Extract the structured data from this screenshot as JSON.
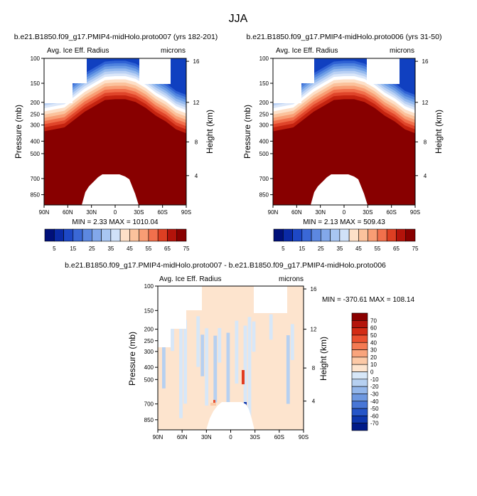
{
  "page": {
    "title": "JJA"
  },
  "colors": {
    "palette_pos": [
      "#fee6d2",
      "#fdd0ae",
      "#fcb08a",
      "#f98963",
      "#f3603f",
      "#e23c20",
      "#c72212",
      "#a8100a",
      "#880000"
    ],
    "palette_neg": [
      "#dceaf9",
      "#c2d8f3",
      "#a4c1ec",
      "#82a6e4",
      "#5c87da",
      "#3a66d0",
      "#1d47c2",
      "#0b2ba2",
      "#001580"
    ],
    "missing": "#ffffff",
    "diff_pos": [
      "#fde4ce",
      "#fcc9a6",
      "#f9a47c",
      "#f47a53",
      "#ea502f",
      "#d32b14",
      "#b4150c",
      "#8a0000"
    ],
    "diff_neg": [
      "#d7e7f8",
      "#b6d0f1",
      "#93b6ea",
      "#6e98e0",
      "#4876d6",
      "#2555c8",
      "#0d36ad",
      "#001a88"
    ]
  },
  "chart_data": [
    {
      "type": "heatmap",
      "panel": "top-left",
      "title": "b.e21.B1850.f09_g17.PMIP4-midHolo.proto007 (yrs 182-201)",
      "subtitle_left": "Avg. Ice Eff. Radius",
      "subtitle_right": "microns",
      "ylabel": "Pressure (mb)",
      "ylabel_right": "Height (km)",
      "x_ticks": [
        "90N",
        "60N",
        "30N",
        "0",
        "30S",
        "60S",
        "90S"
      ],
      "y_ticks": [
        "100",
        "150",
        "200",
        "250",
        "300",
        "400",
        "500",
        "700",
        "850"
      ],
      "y_right_ticks": [
        "16",
        "12",
        "8",
        "4"
      ],
      "min_max_text": "MIN = 2.33 MAX = 1010.04",
      "colorbar_labels": [
        "5",
        "15",
        "25",
        "35",
        "45",
        "55",
        "65",
        "75"
      ],
      "colorbar_levels": 14
    },
    {
      "type": "heatmap",
      "panel": "top-right",
      "title": "b.e21.B1850.f09_g17.PMIP4-midHolo.proto006 (yrs 31-50)",
      "subtitle_left": "Avg. Ice Eff. Radius",
      "subtitle_right": "microns",
      "ylabel": "Pressure (mb)",
      "ylabel_right": "Height (km)",
      "x_ticks": [
        "90N",
        "60N",
        "30N",
        "0",
        "30S",
        "60S",
        "90S"
      ],
      "y_ticks": [
        "100",
        "150",
        "200",
        "250",
        "300",
        "400",
        "500",
        "700",
        "850"
      ],
      "y_right_ticks": [
        "16",
        "12",
        "8",
        "4"
      ],
      "min_max_text": "MIN = 2.13 MAX = 509.43",
      "colorbar_labels": [
        "5",
        "15",
        "25",
        "35",
        "45",
        "55",
        "65",
        "75"
      ],
      "colorbar_levels": 14
    },
    {
      "type": "heatmap",
      "panel": "bottom",
      "title": "b.e21.B1850.f09_g17.PMIP4-midHolo.proto007 - b.e21.B1850.f09_g17.PMIP4-midHolo.proto006",
      "subtitle_left": "Avg. Ice Eff. Radius",
      "subtitle_right": "microns",
      "ylabel": "Pressure (mb)",
      "ylabel_right": "Height (km)",
      "x_ticks": [
        "90N",
        "60N",
        "30N",
        "0",
        "30S",
        "60S",
        "90S"
      ],
      "y_ticks": [
        "100",
        "150",
        "200",
        "250",
        "300",
        "400",
        "500",
        "700",
        "850"
      ],
      "y_right_ticks": [
        "16",
        "12",
        "8",
        "4"
      ],
      "min_max_text": "MIN = -370.61 MAX = 108.14",
      "colorbar_labels": [
        "70",
        "60",
        "50",
        "40",
        "30",
        "20",
        "10",
        "0",
        "-10",
        "-20",
        "-30",
        "-40",
        "-50",
        "-60",
        "-70"
      ]
    }
  ]
}
